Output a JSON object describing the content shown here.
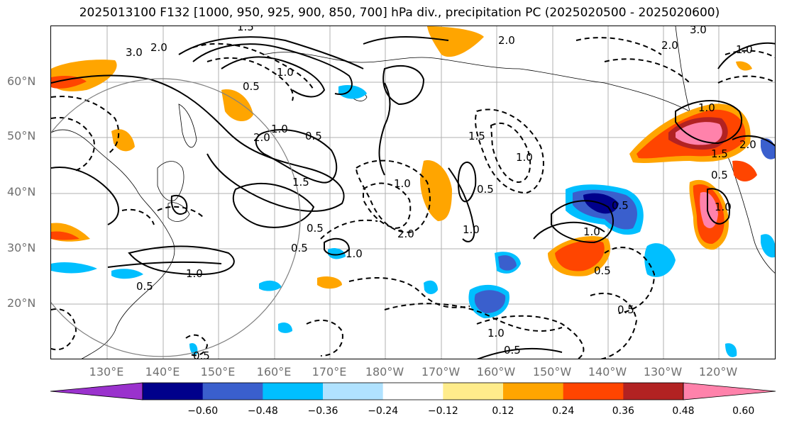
{
  "title": "2025013100 F132 [1000, 950, 925, 900, 850, 700] hPa div., precipitation PC (2025020500 - 2025020600)",
  "lat_labels": [
    "60°N",
    "50°N",
    "40°N",
    "30°N",
    "20°N"
  ],
  "lon_labels": [
    "130°E",
    "140°E",
    "150°E",
    "160°E",
    "170°E",
    "180°W",
    "170°W",
    "160°W",
    "150°W",
    "140°W",
    "130°W",
    "120°W"
  ],
  "contour_labels": [
    "3.0",
    "2.0",
    "1.5",
    "1.0",
    "0.5",
    "1.0",
    "2.0",
    "0.5",
    "1.5",
    "1.0",
    "0.5",
    "1.0",
    "0.5",
    "2.0",
    "1.0",
    "0.5",
    "1.5",
    "1.0",
    "0.5",
    "2.0",
    "1.0",
    "1.0",
    "0.5",
    "0.5",
    "1.0",
    "1.5",
    "0.5",
    "2.0",
    "1.0",
    "0.5",
    "1.0",
    "0.5",
    "3.0",
    "2.0",
    "1.0",
    "0.5"
  ],
  "colorbar": {
    "colors": [
      "#9a32cd",
      "#00008b",
      "#3a5fcd",
      "#00bfff",
      "#b0e2ff",
      "#ffffff",
      "#ffec8b",
      "#ffa500",
      "#ff4500",
      "#b22222",
      "#ff82ab"
    ],
    "tick_labels": [
      "−0.60",
      "−0.48",
      "−0.36",
      "−0.24",
      "−0.12",
      "0.12",
      "0.24",
      "0.36",
      "0.48",
      "0.60"
    ],
    "levels": [
      -0.6,
      -0.48,
      -0.36,
      -0.24,
      -0.12,
      0.12,
      0.24,
      0.36,
      0.48,
      0.6
    ],
    "extend": "both"
  }
}
